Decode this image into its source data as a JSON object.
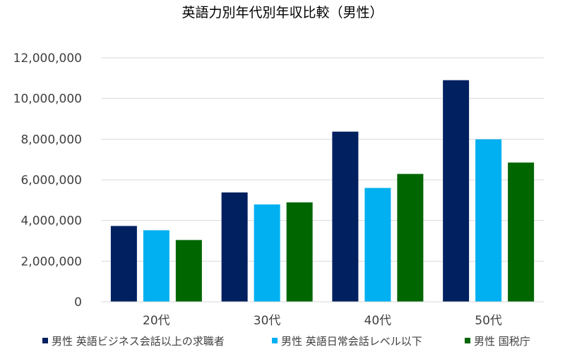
{
  "chart_data": {
    "type": "bar",
    "title": "英語力別年代別年収比較（男性）",
    "xlabel": "",
    "ylabel": "",
    "categories": [
      "20代",
      "30代",
      "40代",
      "50代"
    ],
    "series": [
      {
        "name": "男性 英語ビジネス会話以上の求職者",
        "color": "#002060",
        "values": [
          3730000,
          5380000,
          8370000,
          10900000
        ]
      },
      {
        "name": "男性 英語日常会話レベル以下",
        "color": "#00B0F0",
        "values": [
          3520000,
          4790000,
          5600000,
          7990000
        ]
      },
      {
        "name": "男性 国税庁",
        "color": "#006600",
        "values": [
          3040000,
          4890000,
          6290000,
          6850000
        ]
      }
    ],
    "ylim": [
      0,
      12000000
    ],
    "yticks": [
      0,
      2000000,
      4000000,
      6000000,
      8000000,
      10000000,
      12000000
    ],
    "ytick_labels": [
      "0",
      "2,000,000",
      "4,000,000",
      "6,000,000",
      "8,000,000",
      "10,000,000",
      "12,000,000"
    ],
    "grid": true,
    "legend": "bottom"
  }
}
